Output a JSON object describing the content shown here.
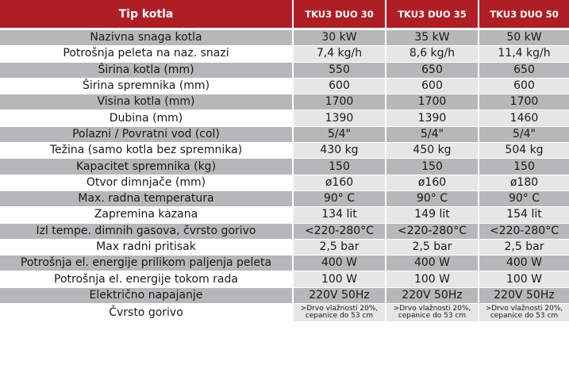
{
  "table": {
    "header": {
      "type_label": "Tip kotla",
      "models": [
        "TKU3 DUO 30",
        "TKU3 DUO 35",
        "TKU3 DUO 50"
      ]
    },
    "rows": [
      {
        "label": "Nazivna snaga kotla",
        "values": [
          "30 kW",
          "35 kW",
          "50 kW"
        ]
      },
      {
        "label": "Potrošnja peleta na naz. snazi",
        "values": [
          "7,4 kg/h",
          "8,6 kg/h",
          "11,4 kg/h"
        ]
      },
      {
        "label": "Širina kotla (mm)",
        "values": [
          "550",
          "650",
          "650"
        ]
      },
      {
        "label": "Širina spremnika (mm)",
        "values": [
          "600",
          "600",
          "600"
        ]
      },
      {
        "label": "Visina kotla (mm)",
        "values": [
          "1700",
          "1700",
          "1700"
        ]
      },
      {
        "label": "Dubina (mm)",
        "values": [
          "1390",
          "1390",
          "1460"
        ]
      },
      {
        "label": "Polazni / Povratni vod (col)",
        "values": [
          "5/4\"",
          "5/4\"",
          "5/4\""
        ]
      },
      {
        "label": "Težina (samo kotla bez spremnika)",
        "values": [
          "430 kg",
          "450 kg",
          "504 kg"
        ]
      },
      {
        "label": "Kapacitet spremnika (kg)",
        "values": [
          "150",
          "150",
          "150"
        ]
      },
      {
        "label": "Otvor dimnjače (mm)",
        "values": [
          "ø160",
          "ø160",
          "ø180"
        ]
      },
      {
        "label": "Max. radna temperatura",
        "values": [
          "90° C",
          "90° C",
          "90° C"
        ]
      },
      {
        "label": "Zapremina kazana",
        "values": [
          "134 lit",
          "149 lit",
          "154 lit"
        ]
      },
      {
        "label": "Izl tempe. dimnih gasova, čvrsto gorivo",
        "values": [
          "<220-280°C",
          "<220-280°C",
          "<220-280°C"
        ]
      },
      {
        "label": "Max radni pritisak",
        "values": [
          "2,5 bar",
          "2,5 bar",
          "2,5 bar"
        ]
      },
      {
        "label": "Potrošnja el. energije prilikom paljenja peleta",
        "values": [
          "400 W",
          "400 W",
          "400 W"
        ]
      },
      {
        "label": "Potrošnja el. energije tokom rada",
        "values": [
          "100 W",
          "100 W",
          "100 W"
        ]
      },
      {
        "label": "Električno napajanje",
        "values": [
          "220V 50Hz",
          "220V 50Hz",
          "220V 50Hz"
        ]
      },
      {
        "label": "Čvrsto gorivo",
        "values": [
          ">Drvo vlažnosti 20%, cepanice do 53 cm",
          ">Drvo vlažnosti 20%, cepanice do 53 cm",
          ">Drvo vlažnosti 20%, cepanice do 53 cm"
        ]
      }
    ]
  },
  "colors": {
    "header_red": "#b01e25",
    "stripe_gray": "#b7b7b9",
    "light_gray": "#e6e6e7"
  }
}
